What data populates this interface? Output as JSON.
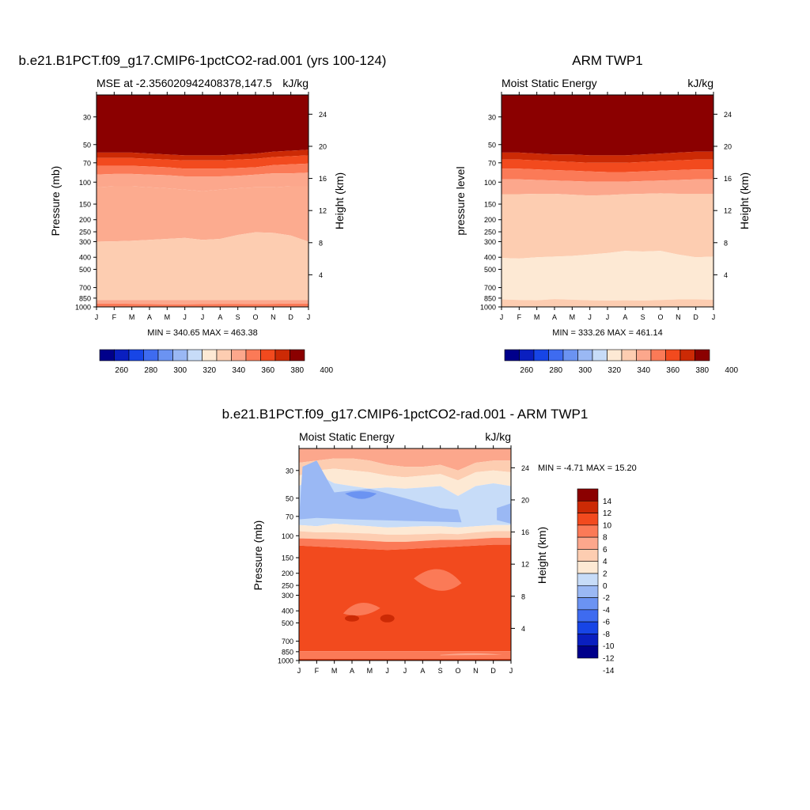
{
  "colors": {
    "abs_levels": [
      "#00008b",
      "#0a1fc0",
      "#1745e6",
      "#3e6bf0",
      "#6b93f2",
      "#9ab8f4",
      "#c7dcf8",
      "#fde9d4",
      "#fdcdb1",
      "#fca78c",
      "#fb7a57",
      "#f24a1e",
      "#cc2a05",
      "#8b0000"
    ],
    "diff_levels": [
      "#00008b",
      "#0a1fc0",
      "#1745e6",
      "#3e6bf0",
      "#6b93f2",
      "#9ab8f4",
      "#c7dcf8",
      "#fde9d4",
      "#fdcdb1",
      "#fca78c",
      "#fb7a57",
      "#f24a1e",
      "#cc2a05",
      "#8b0000"
    ]
  },
  "panels": [
    {
      "title": "b.e21.B1PCT.f09_g17.CMIP6-1pctCO2-rad.001 (yrs 100-124)",
      "left_label": "MSE at -2.356020942408378,147.5",
      "right_label": "kJ/kg",
      "ylabel_left": "Pressure (mb)",
      "ylabel_right": "Height (km)",
      "minmax": "MIN = 340.65  MAX = 463.38",
      "colorbar_labels": [
        "260",
        "280",
        "300",
        "320",
        "340",
        "360",
        "380",
        "400"
      ]
    },
    {
      "title": "ARM TWP1",
      "left_label": "Moist Static Energy",
      "right_label": "kJ/kg",
      "ylabel_left": "pressure level",
      "ylabel_right": "Height (km)",
      "minmax": "MIN = 333.26  MAX = 461.14",
      "colorbar_labels": [
        "260",
        "280",
        "300",
        "320",
        "340",
        "360",
        "380",
        "400"
      ]
    },
    {
      "title": "b.e21.B1PCT.f09_g17.CMIP6-1pctCO2-rad.001 - ARM TWP1",
      "left_label": "Moist Static Energy",
      "right_label": "kJ/kg",
      "ylabel_left": "Pressure (mb)",
      "ylabel_right": "Height (km)",
      "minmax": "MIN =  -4.71  MAX =  15.20",
      "colorbar_labels": [
        "14",
        "12",
        "10",
        "8",
        "6",
        "4",
        "2",
        "0",
        "-2",
        "-4",
        "-6",
        "-8",
        "-10",
        "-12",
        "-14"
      ]
    }
  ],
  "chart_data": [
    {
      "type": "heatmap",
      "title": "b.e21.B1PCT.f09_g17.CMIP6-1pctCO2-rad.001 (yrs 100-124)",
      "x": [
        "J",
        "F",
        "M",
        "A",
        "M",
        "J",
        "J",
        "A",
        "S",
        "O",
        "N",
        "D",
        "J"
      ],
      "pressure_ticks": [
        30,
        50,
        70,
        100,
        150,
        200,
        250,
        300,
        400,
        500,
        700,
        850,
        1000
      ],
      "height_ticks": [
        4,
        8,
        12,
        16,
        20,
        24
      ],
      "pressure_range": [
        1000,
        20
      ],
      "height_range": [
        0,
        26.4
      ],
      "xlabel": "",
      "ylabel": "Pressure (mb)",
      "y2label": "Height (km)",
      "levels": [
        250,
        260,
        270,
        280,
        290,
        300,
        310,
        320,
        330,
        340,
        350,
        360,
        370,
        380,
        390,
        400
      ],
      "boundaries": {
        "p300": [
          300,
          298,
          295,
          290,
          285,
          280,
          290,
          285,
          265,
          252,
          255,
          268,
          300
        ],
        "p200": [
          110,
          108,
          108,
          110,
          112,
          115,
          118,
          115,
          112,
          110,
          110,
          108,
          108
        ],
        "p90": [
          87,
          86,
          86,
          87,
          88,
          90,
          90,
          90,
          89,
          87,
          85,
          85,
          84
        ],
        "p70": [
          74,
          74,
          74,
          75,
          76,
          78,
          78,
          78,
          77,
          76,
          73,
          72,
          71
        ],
        "p60": [
          64,
          64,
          64,
          65,
          66,
          67,
          67,
          67,
          66,
          65,
          63,
          62,
          61
        ],
        "p55": [
          58,
          58,
          58,
          59,
          60,
          61,
          61,
          61,
          60,
          59,
          57,
          56,
          55
        ],
        "lowA": [
          880,
          880,
          880,
          880,
          880,
          880,
          880,
          880,
          880,
          880,
          880,
          880,
          880
        ],
        "lowB": [
          940,
          940,
          945,
          950,
          955,
          955,
          950,
          945,
          945,
          950,
          945,
          940,
          940
        ]
      },
      "min": 340.65,
      "max": 463.38,
      "units": "kJ/kg"
    },
    {
      "type": "heatmap",
      "title": "ARM TWP1",
      "x": [
        "J",
        "F",
        "M",
        "A",
        "M",
        "J",
        "J",
        "A",
        "S",
        "O",
        "N",
        "D",
        "J"
      ],
      "pressure_ticks": [
        30,
        50,
        70,
        100,
        150,
        200,
        250,
        300,
        400,
        500,
        700,
        850,
        1000
      ],
      "height_ticks": [
        4,
        8,
        12,
        16,
        20,
        24
      ],
      "ylabel": "pressure level",
      "y2label": "Height (km)",
      "boundaries": {
        "p340": [
          405,
          410,
          400,
          395,
          390,
          380,
          370,
          355,
          360,
          355,
          380,
          400,
          395
        ],
        "p200": [
          125,
          125,
          124,
          124,
          126,
          128,
          127,
          125,
          124,
          123,
          124,
          124,
          124
        ],
        "p90": [
          95,
          95,
          96,
          97,
          98,
          99,
          99,
          99,
          98,
          97,
          96,
          95,
          95
        ],
        "p70": [
          78,
          78,
          79,
          80,
          81,
          82,
          83,
          83,
          82,
          81,
          80,
          79,
          79
        ],
        "p60": [
          66,
          66,
          67,
          68,
          69,
          70,
          70,
          70,
          69,
          68,
          67,
          66,
          66
        ],
        "p55": [
          58,
          58,
          59,
          60,
          60,
          61,
          61,
          61,
          60,
          59,
          58,
          57,
          57
        ],
        "low": [
          870,
          880,
          885,
          865,
          875,
          885,
          890,
          885,
          890,
          880,
          870,
          870,
          875
        ]
      },
      "min": 333.26,
      "max": 461.14,
      "units": "kJ/kg"
    },
    {
      "type": "heatmap",
      "title": "b.e21.B1PCT.f09_g17.CMIP6-1pctCO2-rad.001 - ARM TWP1",
      "x": [
        "J",
        "F",
        "M",
        "A",
        "M",
        "J",
        "J",
        "A",
        "S",
        "O",
        "N",
        "D",
        "J"
      ],
      "pressure_ticks": [
        30,
        50,
        70,
        100,
        150,
        200,
        250,
        300,
        400,
        500,
        700,
        850,
        1000
      ],
      "height_ticks": [
        4,
        8,
        12,
        16,
        20,
        24
      ],
      "ylabel": "Pressure (mb)",
      "y2label": "Height (km)",
      "levels": [
        -14,
        -12,
        -10,
        -8,
        -6,
        -4,
        -2,
        0,
        2,
        4,
        6,
        8,
        10,
        12,
        14
      ],
      "min": -4.71,
      "max": 15.2,
      "units": "kJ/kg"
    }
  ]
}
